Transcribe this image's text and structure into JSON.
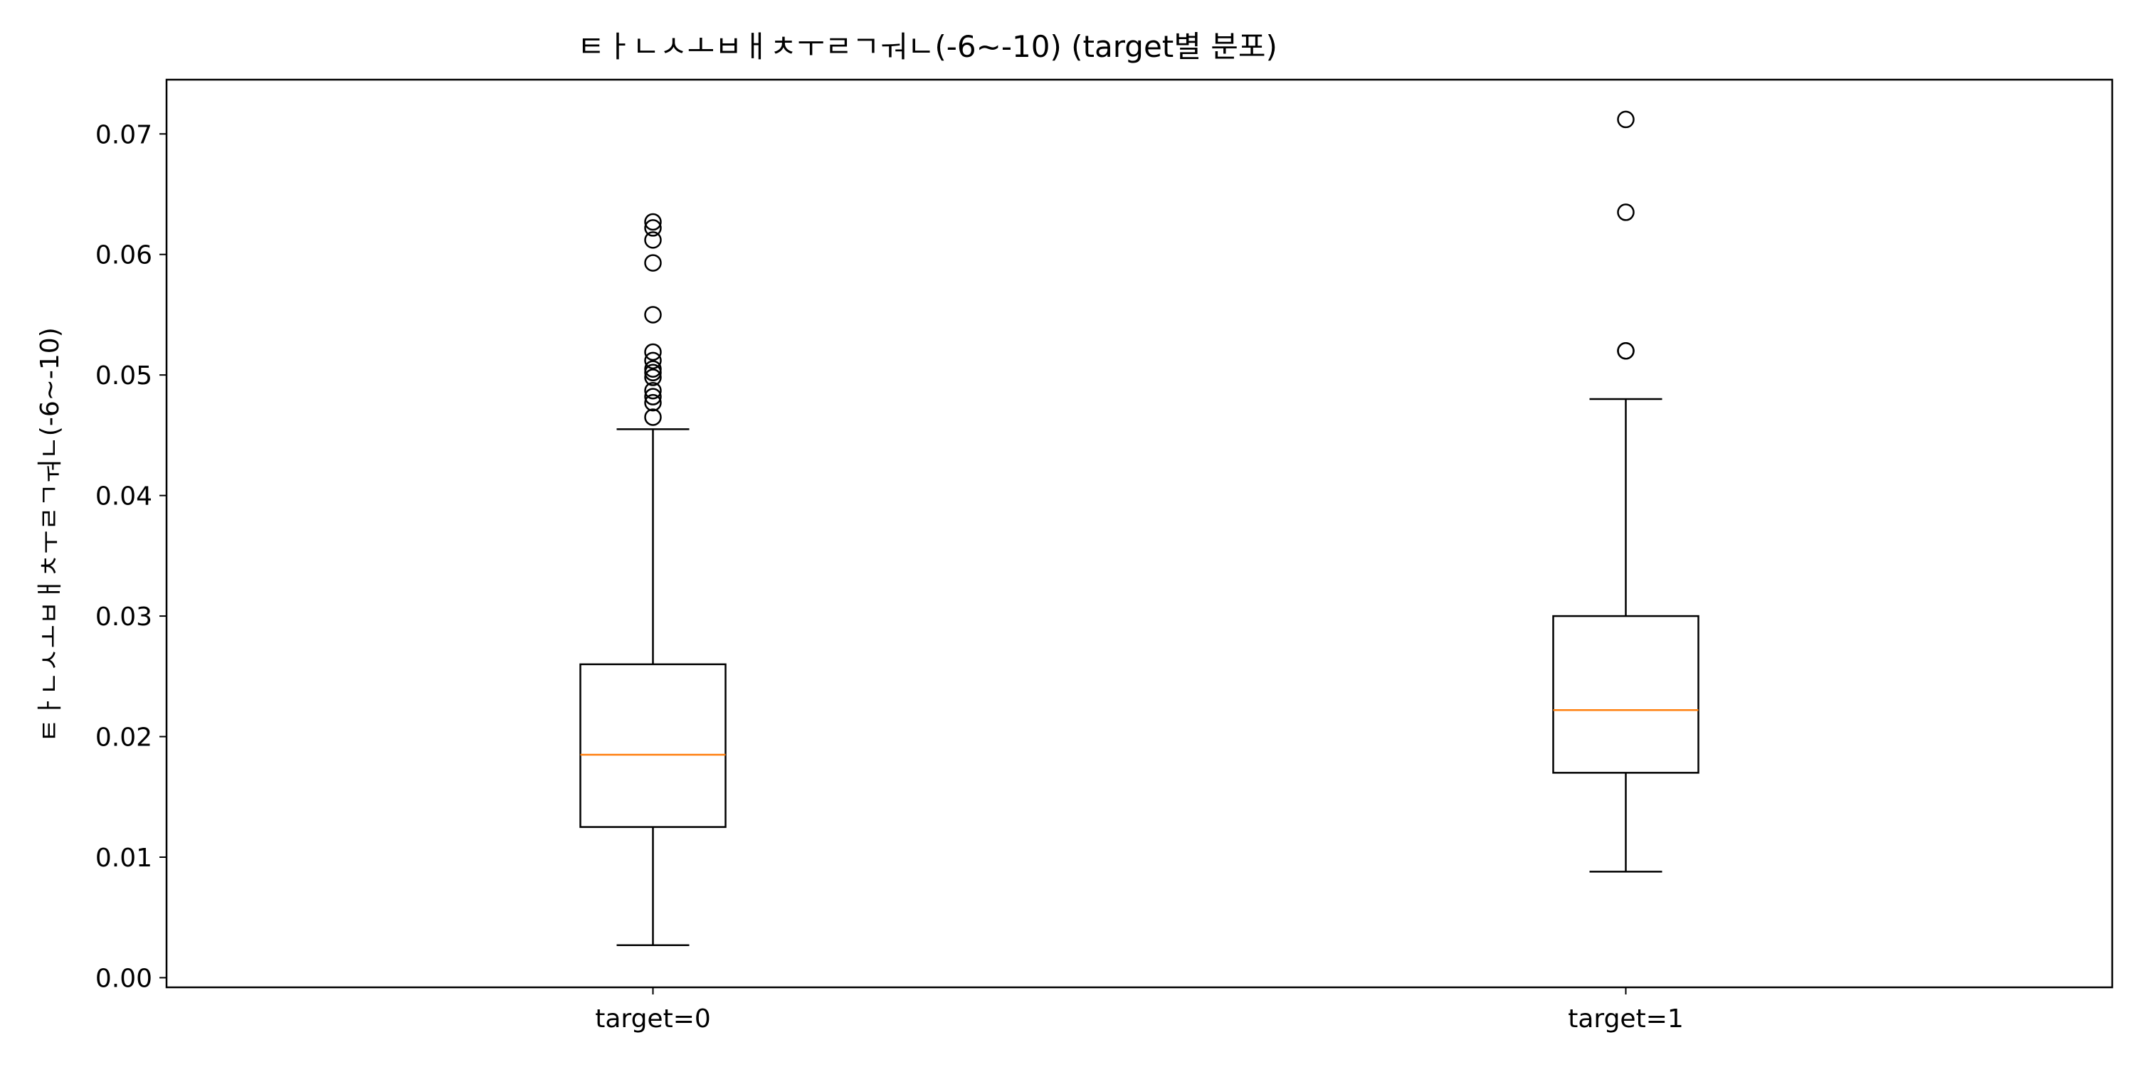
{
  "chart_data": {
    "type": "box",
    "title": "ㅌㅏㄴㅅㅗㅂㅐㅊㅜㄹㄱㅝㄴ(-6~-10) (target별 분포)",
    "xlabel": "",
    "ylabel": "ㅌㅏㄴㅅㅗㅂㅐㅊㅜㄹㄱㅝㄴ(-6~-10)",
    "ylim": [
      -0.0008,
      0.0745
    ],
    "yticks": [
      0.0,
      0.01,
      0.02,
      0.03,
      0.04,
      0.05,
      0.06,
      0.07
    ],
    "ytick_labels": [
      "0.00",
      "0.01",
      "0.02",
      "0.03",
      "0.04",
      "0.05",
      "0.06",
      "0.07"
    ],
    "grid": false,
    "categories": [
      "target=0",
      "target=1"
    ],
    "boxes": [
      {
        "category": "target=0",
        "whisker_low": 0.0027,
        "q1": 0.0125,
        "median": 0.0185,
        "q3": 0.026,
        "whisker_high": 0.0455,
        "outliers": [
          0.0627,
          0.0622,
          0.0612,
          0.0593,
          0.055,
          0.0519,
          0.0512,
          0.0505,
          0.0502,
          0.0498,
          0.0487,
          0.0482,
          0.0477,
          0.0465
        ]
      },
      {
        "category": "target=1",
        "whisker_low": 0.0088,
        "q1": 0.017,
        "median": 0.0222,
        "q3": 0.03,
        "whisker_high": 0.048,
        "outliers": [
          0.0712,
          0.0635,
          0.052,
          0.052
        ]
      }
    ],
    "colors": {
      "box": "#000000",
      "median": "#ff7f0e",
      "outlier": "#000000"
    }
  }
}
